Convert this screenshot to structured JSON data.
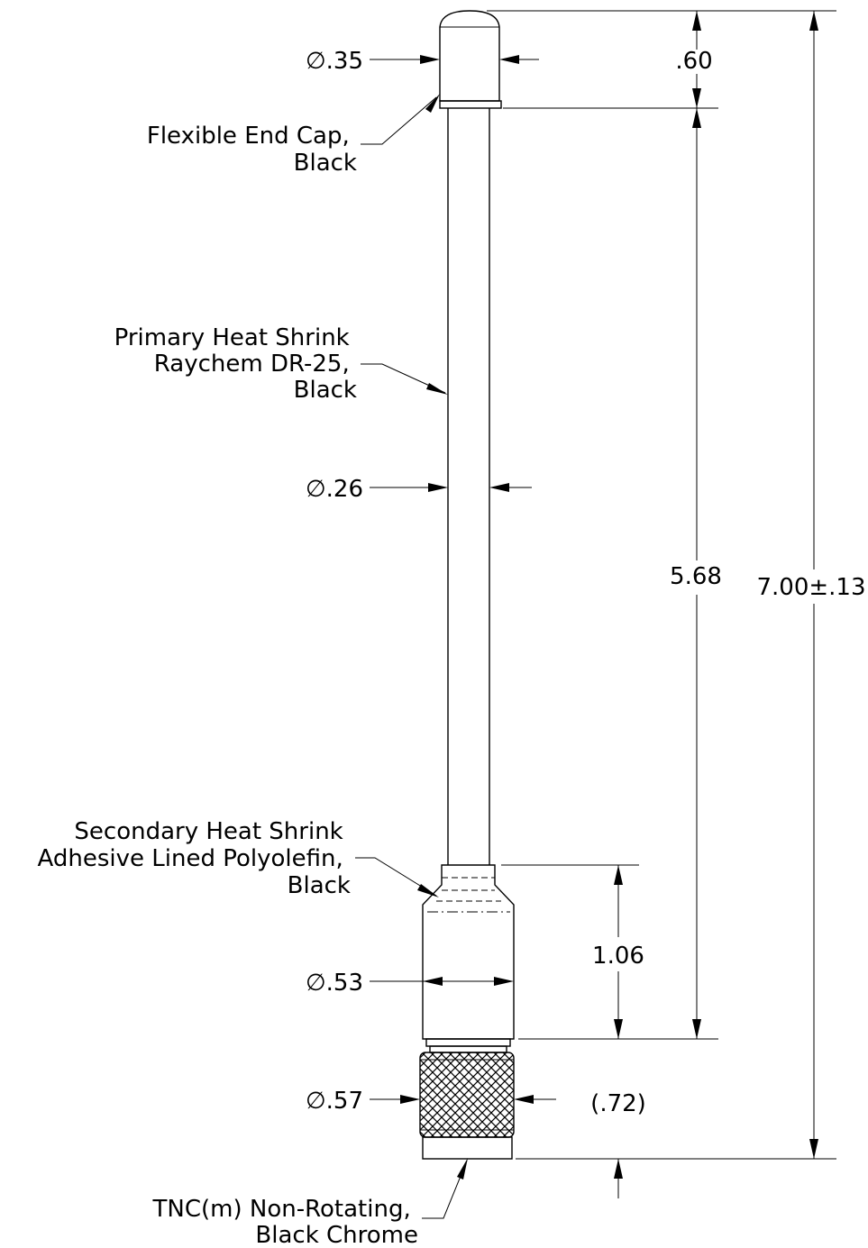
{
  "callouts": {
    "end_cap": [
      "Flexible End Cap,",
      "Black"
    ],
    "primary_heat_shrink": [
      "Primary Heat Shrink",
      "Raychem DR-25,",
      "Black"
    ],
    "secondary_heat_shrink": [
      "Secondary Heat Shrink",
      "Adhesive Lined Polyolefin,",
      "Black"
    ],
    "connector": [
      "TNC(m) Non-Rotating,",
      "Black Chrome"
    ]
  },
  "dimensions": {
    "dia_end_cap": "∅.35",
    "dia_primary": "∅.26",
    "dia_secondary": "∅.53",
    "dia_connector": "∅.57",
    "cap_length": ".60",
    "primary_length": "5.68",
    "overall_length": "7.00±.13",
    "secondary_length": "1.06",
    "connector_length": "(.72)"
  }
}
